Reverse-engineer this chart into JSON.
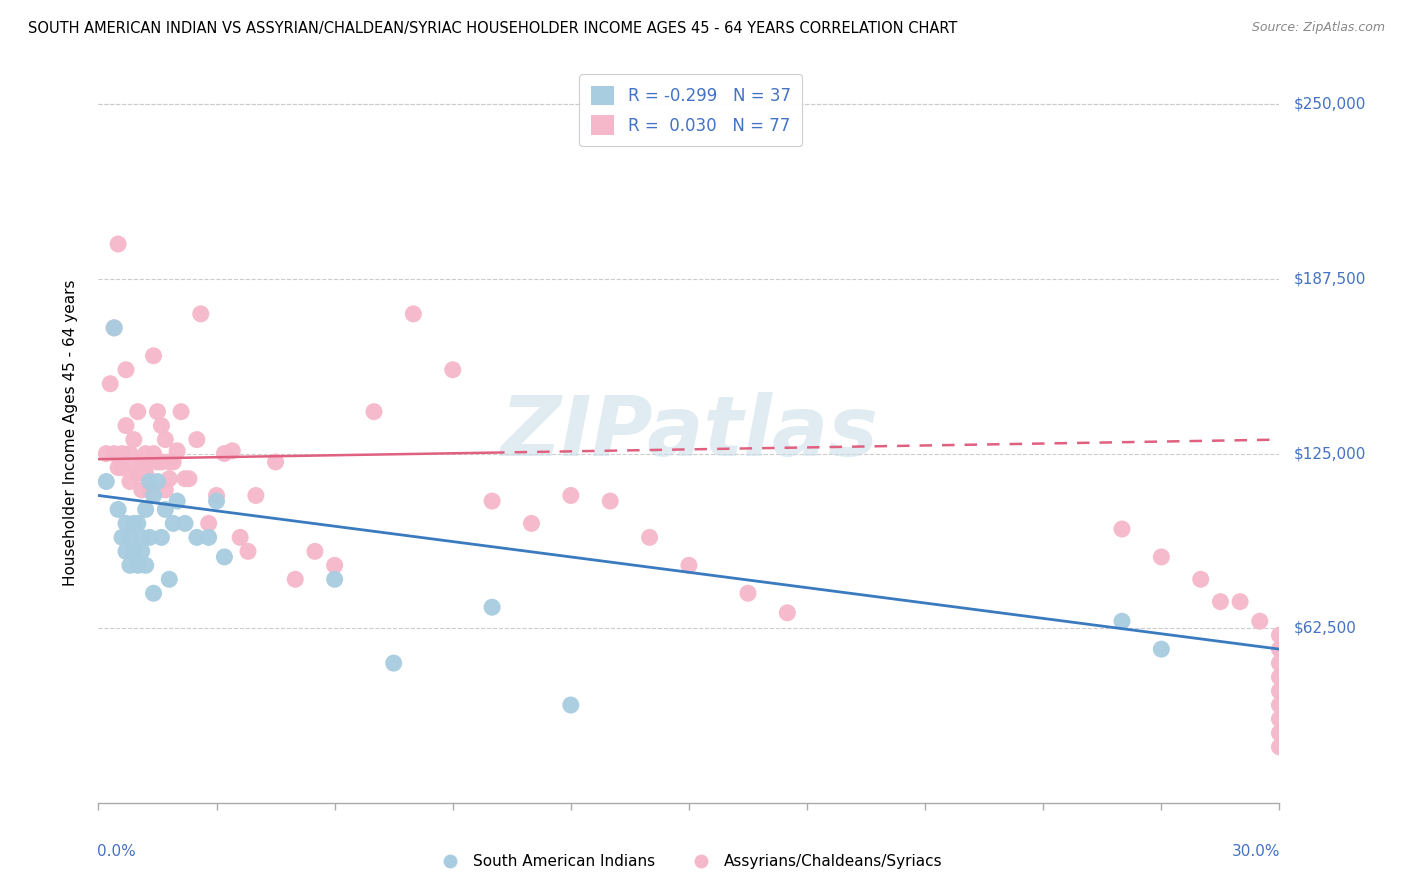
{
  "title": "SOUTH AMERICAN INDIAN VS ASSYRIAN/CHALDEAN/SYRIAC HOUSEHOLDER INCOME AGES 45 - 64 YEARS CORRELATION CHART",
  "source": "Source: ZipAtlas.com",
  "ylabel": "Householder Income Ages 45 - 64 years",
  "ytick_labels": [
    "$62,500",
    "$125,000",
    "$187,500",
    "$250,000"
  ],
  "ytick_values": [
    62500,
    125000,
    187500,
    250000
  ],
  "ylim": [
    0,
    265000
  ],
  "xlim": [
    0.0,
    0.3
  ],
  "watermark": "ZIPatlas",
  "legend1_r": "-0.299",
  "legend1_n": "37",
  "legend2_r": "0.030",
  "legend2_n": "77",
  "blue_color": "#a8cce0",
  "pink_color": "#f5b8ca",
  "blue_line_color": "#3a7abf",
  "pink_line_color": "#e06080",
  "label_color": "#4472c4",
  "blue_points_x": [
    0.002,
    0.004,
    0.005,
    0.006,
    0.007,
    0.007,
    0.008,
    0.008,
    0.009,
    0.009,
    0.01,
    0.01,
    0.011,
    0.011,
    0.012,
    0.012,
    0.013,
    0.013,
    0.014,
    0.014,
    0.015,
    0.016,
    0.017,
    0.018,
    0.019,
    0.02,
    0.022,
    0.025,
    0.028,
    0.03,
    0.032,
    0.06,
    0.075,
    0.1,
    0.12,
    0.26,
    0.27
  ],
  "blue_points_y": [
    115000,
    170000,
    105000,
    95000,
    100000,
    90000,
    95000,
    85000,
    100000,
    90000,
    85000,
    100000,
    95000,
    90000,
    85000,
    105000,
    95000,
    115000,
    110000,
    75000,
    115000,
    95000,
    105000,
    80000,
    100000,
    108000,
    100000,
    95000,
    95000,
    108000,
    88000,
    80000,
    50000,
    70000,
    35000,
    65000,
    55000
  ],
  "pink_points_x": [
    0.002,
    0.003,
    0.004,
    0.004,
    0.005,
    0.005,
    0.006,
    0.006,
    0.007,
    0.007,
    0.008,
    0.008,
    0.009,
    0.009,
    0.01,
    0.01,
    0.011,
    0.011,
    0.011,
    0.012,
    0.012,
    0.013,
    0.013,
    0.014,
    0.014,
    0.015,
    0.015,
    0.016,
    0.016,
    0.017,
    0.017,
    0.018,
    0.018,
    0.019,
    0.02,
    0.021,
    0.022,
    0.023,
    0.025,
    0.026,
    0.028,
    0.03,
    0.032,
    0.034,
    0.036,
    0.038,
    0.04,
    0.045,
    0.05,
    0.055,
    0.06,
    0.07,
    0.08,
    0.09,
    0.1,
    0.11,
    0.12,
    0.13,
    0.14,
    0.15,
    0.165,
    0.175,
    0.26,
    0.27,
    0.28,
    0.285,
    0.29,
    0.295,
    0.3,
    0.3,
    0.3,
    0.3,
    0.3,
    0.3,
    0.3,
    0.3,
    0.3
  ],
  "pink_points_y": [
    125000,
    150000,
    125000,
    170000,
    200000,
    120000,
    120000,
    125000,
    135000,
    155000,
    115000,
    125000,
    120000,
    130000,
    118000,
    140000,
    112000,
    118000,
    122000,
    125000,
    118000,
    112000,
    122000,
    160000,
    125000,
    122000,
    140000,
    122000,
    135000,
    112000,
    130000,
    122000,
    116000,
    122000,
    126000,
    140000,
    116000,
    116000,
    130000,
    175000,
    100000,
    110000,
    125000,
    126000,
    95000,
    90000,
    110000,
    122000,
    80000,
    90000,
    85000,
    140000,
    175000,
    155000,
    108000,
    100000,
    110000,
    108000,
    95000,
    85000,
    75000,
    68000,
    98000,
    88000,
    80000,
    72000,
    72000,
    65000,
    60000,
    55000,
    50000,
    45000,
    40000,
    35000,
    30000,
    25000,
    20000
  ]
}
